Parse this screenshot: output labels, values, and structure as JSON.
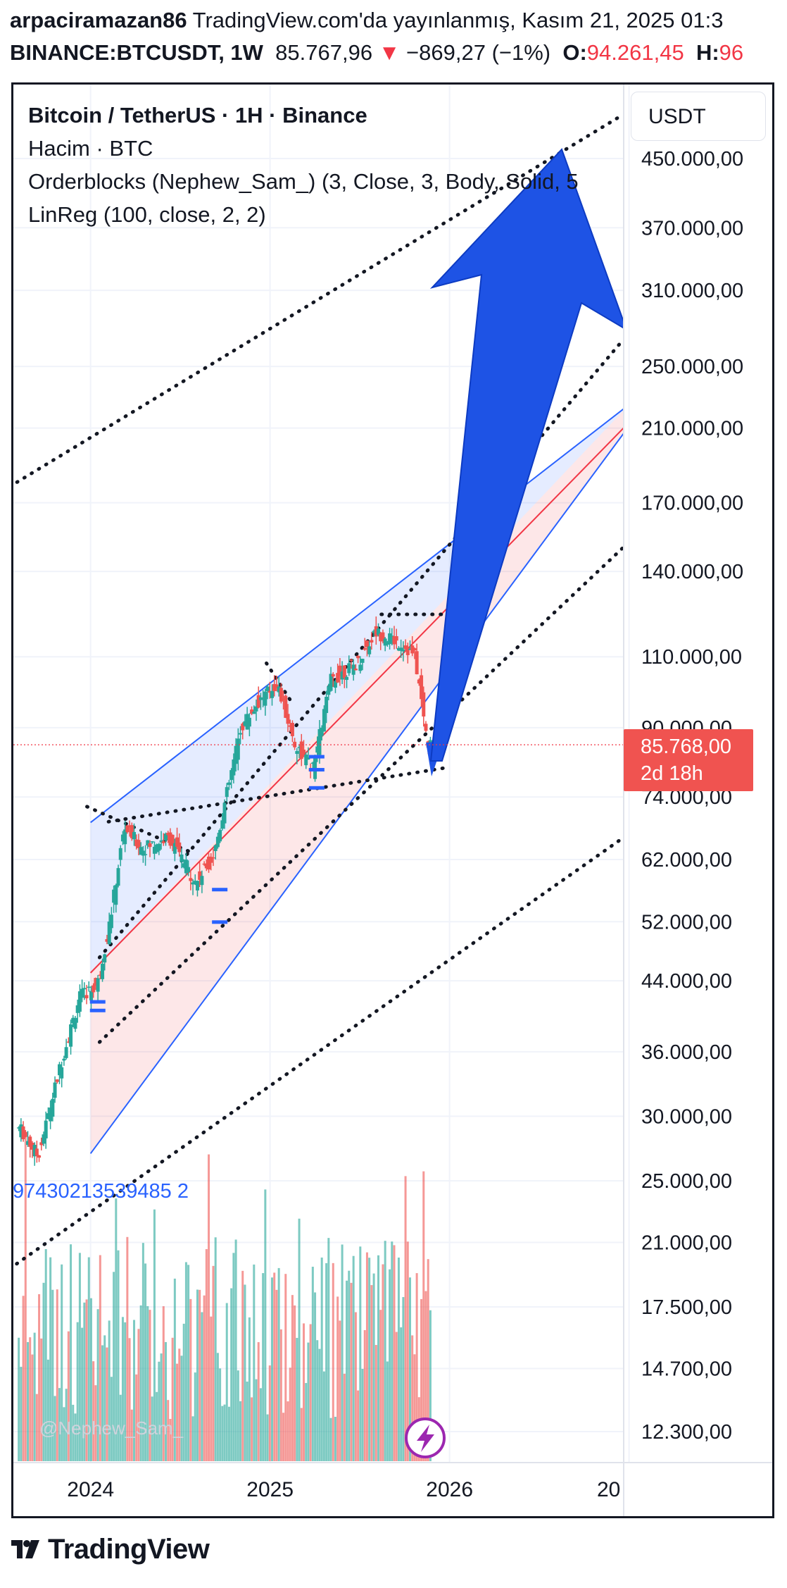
{
  "header": {
    "author": "arpaciramazan86",
    "published": "TradingView.com'da yayınlanmış, Kasım 21, 2025 01:3",
    "symbol": "BINANCE:BTCUSDT, 1W",
    "last_price": "85.767,96",
    "change": "−869,27 (−1%)",
    "open_label": "O:",
    "open_value": "94.261,45",
    "high_label": "H:",
    "high_value": "96"
  },
  "legend": {
    "title": "Bitcoin / TetherUS · 1H · Binance",
    "volume": "Hacim · BTC",
    "orderblocks": "Orderblocks (Nephew_Sam_) (3, Close, 3, Body, Solid, 5",
    "linreg": "LinReg (100, close, 2, 2)"
  },
  "price_axis": {
    "unit": "USDT",
    "current_price": "85.768,00",
    "countdown": "2d 18h"
  },
  "watermark": "@Nephew_Sam_",
  "overlay_number": "97430213539485 2",
  "brand": "TradingView",
  "colors": {
    "up": "#26a69a",
    "down": "#ef5350",
    "arrow": "#1e53e5",
    "channel_blue": "#2962ff",
    "bg": "#ffffff"
  },
  "chart_data": {
    "type": "candlestick",
    "scale": "log",
    "ylim": [
      11500,
      560000
    ],
    "x_tick_labels": [
      "2024",
      "2025",
      "2026",
      "20"
    ],
    "y_tick_labels": [
      "450.000,00",
      "370.000,00",
      "310.000,00",
      "250.000,00",
      "210.000,00",
      "170.000,00",
      "140.000,00",
      "110.000,00",
      "90.000,00",
      "74.000,00",
      "62.000,00",
      "52.000,00",
      "44.000,00",
      "36.000,00",
      "30.000,00",
      "25.000,00",
      "21.000,00",
      "17.500,00",
      "14.700,00",
      "12.300,00"
    ],
    "y_tick_values": [
      450000,
      370000,
      310000,
      250000,
      210000,
      170000,
      140000,
      110000,
      90000,
      74000,
      62000,
      52000,
      44000,
      36000,
      30000,
      25000,
      21000,
      17500,
      14700,
      12300
    ],
    "price_key_points": [
      {
        "t": 2023.62,
        "close": 29000
      },
      {
        "t": 2023.72,
        "close": 26800
      },
      {
        "t": 2023.85,
        "close": 35000
      },
      {
        "t": 2023.95,
        "close": 42000
      },
      {
        "t": 2024.05,
        "close": 43500
      },
      {
        "t": 2024.12,
        "close": 52000
      },
      {
        "t": 2024.2,
        "close": 68000
      },
      {
        "t": 2024.3,
        "close": 64000
      },
      {
        "t": 2024.45,
        "close": 66000
      },
      {
        "t": 2024.6,
        "close": 58000
      },
      {
        "t": 2024.7,
        "close": 63000
      },
      {
        "t": 2024.85,
        "close": 90000
      },
      {
        "t": 2024.95,
        "close": 97000
      },
      {
        "t": 2025.05,
        "close": 102000
      },
      {
        "t": 2025.15,
        "close": 86000
      },
      {
        "t": 2025.25,
        "close": 80000
      },
      {
        "t": 2025.35,
        "close": 103000
      },
      {
        "t": 2025.5,
        "close": 108000
      },
      {
        "t": 2025.6,
        "close": 118000
      },
      {
        "t": 2025.75,
        "close": 114000
      },
      {
        "t": 2025.82,
        "close": 110000
      },
      {
        "t": 2025.89,
        "close": 85768
      }
    ],
    "projection_arrow": {
      "from": {
        "t": 2025.88,
        "price": 80000
      },
      "to": {
        "t": 2026.55,
        "price": 480000
      }
    }
  }
}
